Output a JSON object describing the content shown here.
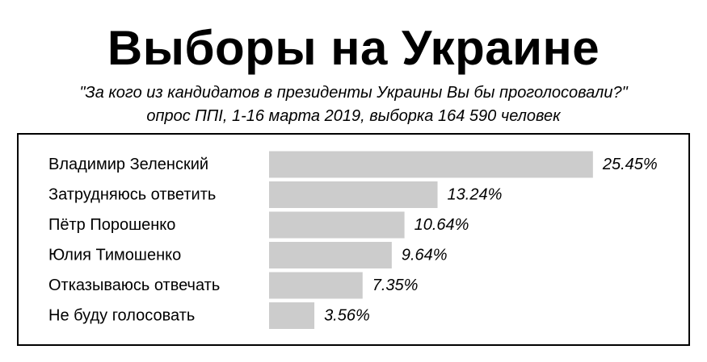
{
  "header": {
    "title": "Выборы на Украине",
    "question": "\"За кого из кандидатов в президенты Украины Вы бы проголосовали?\"",
    "source": "опрос ППІ, 1-16 марта 2019, выборка 164 590 человек"
  },
  "chart_data": {
    "type": "bar",
    "orientation": "horizontal",
    "title": "Выборы на Украине",
    "categories": [
      "Владимир Зеленский",
      "Затрудняюсь ответить",
      "Пётр Порошенко",
      "Юлия Тимошенко",
      "Отказываюсь отвечать",
      "Не буду голосовать"
    ],
    "values": [
      25.45,
      13.24,
      10.64,
      9.64,
      7.35,
      3.56
    ],
    "value_labels": [
      "25.45%",
      "13.24%",
      "10.64%",
      "9.64%",
      "7.35%",
      "3.56%"
    ],
    "unit": "%",
    "grid": false,
    "legend": "none",
    "colors": {
      "bar": "#cccccc",
      "text": "#000000",
      "frame": "#000000"
    }
  }
}
